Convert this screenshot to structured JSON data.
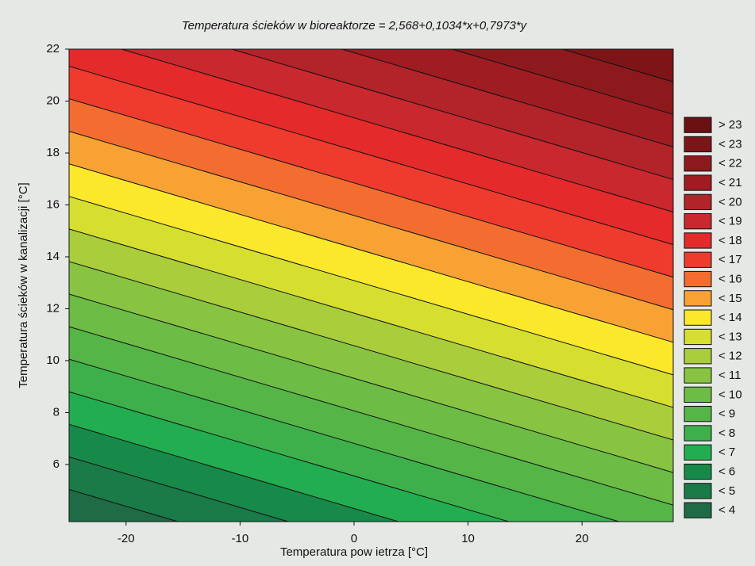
{
  "chart_data": {
    "type": "contour",
    "title": "Temperatura ścieków w bioreaktorze = 2,568+0,1034*x+0,7973*y",
    "xlabel": "Temperatura pow ietrza [°C]",
    "ylabel": "Temperatura ścieków w kanalizacji [°C]",
    "coefficients": {
      "intercept": 2.568,
      "x": 0.1034,
      "y": 0.7973
    },
    "xlim": [
      -25,
      28
    ],
    "ylim": [
      3.8,
      22
    ],
    "xticks": [
      -20,
      -10,
      0,
      10,
      20
    ],
    "yticks": [
      6,
      8,
      10,
      12,
      14,
      16,
      18,
      20,
      22
    ],
    "legend": [
      {
        "value": 23,
        "label": "> 23",
        "color": "#6b1013"
      },
      {
        "value": 23,
        "label": "< 23",
        "color": "#7d1518"
      },
      {
        "value": 22,
        "label": "< 22",
        "color": "#8c1a1d"
      },
      {
        "value": 21,
        "label": "< 21",
        "color": "#9e1c22"
      },
      {
        "value": 20,
        "label": "< 20",
        "color": "#b3232a"
      },
      {
        "value": 19,
        "label": "< 19",
        "color": "#c9282e"
      },
      {
        "value": 18,
        "label": "< 18",
        "color": "#e42a2a"
      },
      {
        "value": 17,
        "label": "< 17",
        "color": "#ee3b2e"
      },
      {
        "value": 16,
        "label": "< 16",
        "color": "#f26d2f"
      },
      {
        "value": 15,
        "label": "< 15",
        "color": "#f7a233"
      },
      {
        "value": 14,
        "label": "< 14",
        "color": "#fbe82a"
      },
      {
        "value": 13,
        "label": "< 13",
        "color": "#d6df30"
      },
      {
        "value": 12,
        "label": "< 12",
        "color": "#aacd3b"
      },
      {
        "value": 11,
        "label": "< 11",
        "color": "#88c442"
      },
      {
        "value": 10,
        "label": "< 10",
        "color": "#6dbc45"
      },
      {
        "value": 9,
        "label": "< 9",
        "color": "#55b547"
      },
      {
        "value": 8,
        "label": "< 8",
        "color": "#3eb04b"
      },
      {
        "value": 7,
        "label": "< 7",
        "color": "#22ae50"
      },
      {
        "value": 6,
        "label": "< 6",
        "color": "#178a4a"
      },
      {
        "value": 5,
        "label": "< 5",
        "color": "#1a7a48"
      },
      {
        "value": 4,
        "label": "< 4",
        "color": "#1e6b45"
      }
    ]
  }
}
